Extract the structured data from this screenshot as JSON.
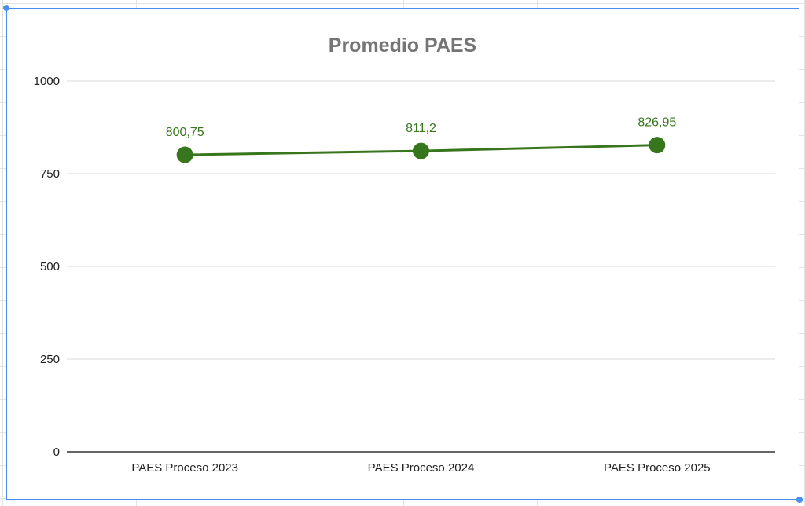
{
  "chart_data": {
    "type": "line",
    "title": "Promedio PAES",
    "xlabel": "",
    "ylabel": "",
    "categories": [
      "PAES Proceso 2023",
      "PAES Proceso 2024",
      "PAES Proceso 2025"
    ],
    "series": [
      {
        "values": [
          800.75,
          811.2,
          826.95
        ],
        "data_labels": [
          "800,75",
          "811,2",
          "826,95"
        ],
        "color": "#38761d"
      }
    ],
    "ylim": [
      0,
      1000
    ],
    "yticks": [
      0,
      250,
      500,
      750,
      1000
    ],
    "ytick_labels": [
      "0",
      "250",
      "500",
      "750",
      "1000"
    ],
    "grid": true,
    "legend": "none"
  },
  "colors": {
    "selection_border": "#4a8ef0",
    "gridline": "#d9d9d9",
    "baseline": "#333333",
    "title": "#757575"
  }
}
